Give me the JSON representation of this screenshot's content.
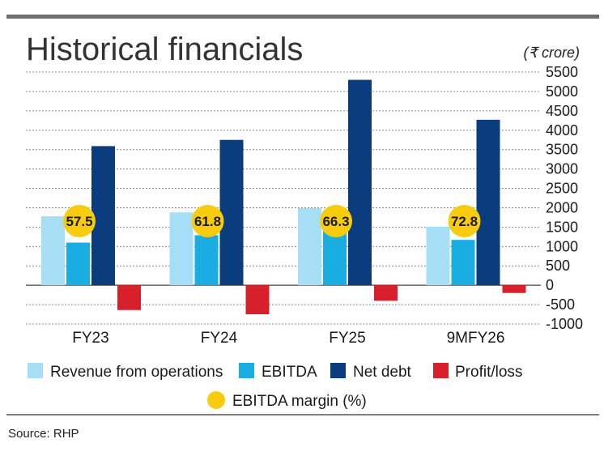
{
  "chart_data": {
    "type": "bar",
    "title": "Historical financials",
    "unit": "(₹ crore)",
    "categories": [
      "FY23",
      "FY24",
      "FY25",
      "9MFY26"
    ],
    "series": [
      {
        "name": "Revenue from operations",
        "color": "#a6dff5",
        "values": [
          1780,
          1880,
          1990,
          1510
        ]
      },
      {
        "name": "EBITDA",
        "color": "#19ade2",
        "values": [
          1100,
          1290,
          1470,
          1170
        ]
      },
      {
        "name": "Net debt",
        "color": "#0b3c7d",
        "values": [
          3590,
          3750,
          5300,
          4270
        ]
      },
      {
        "name": "Profit/loss",
        "color": "#d7202b",
        "values": [
          -640,
          -750,
          -400,
          -200
        ]
      }
    ],
    "margin_series": {
      "name": "EBITDA margin (%)",
      "color": "#f7cc0e",
      "values": [
        57.5,
        61.8,
        66.3,
        72.8
      ]
    },
    "yticks": [
      5500,
      5000,
      4500,
      4000,
      3500,
      3000,
      2500,
      2000,
      1500,
      1000,
      500,
      0,
      -500,
      -1000
    ],
    "ylim": [
      -1000,
      5500
    ],
    "grid": true,
    "legend_placement": "bottom",
    "source": "Source: RHP"
  }
}
